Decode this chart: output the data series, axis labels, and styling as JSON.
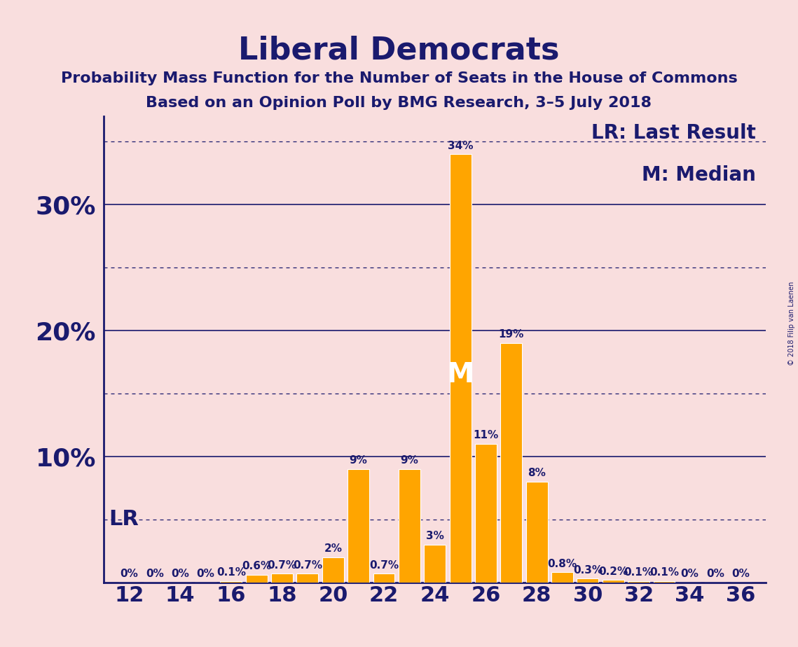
{
  "title": "Liberal Democrats",
  "subtitle1": "Probability Mass Function for the Number of Seats in the House of Commons",
  "subtitle2": "Based on an Opinion Poll by BMG Research, 3–5 July 2018",
  "copyright": "© 2018 Filip van Laenen",
  "seats": [
    12,
    13,
    14,
    15,
    16,
    17,
    18,
    19,
    20,
    21,
    22,
    23,
    24,
    25,
    26,
    27,
    28,
    29,
    30,
    31,
    32,
    33,
    34,
    35,
    36
  ],
  "probabilities": [
    0.0,
    0.0,
    0.0,
    0.0,
    0.1,
    0.6,
    0.7,
    0.7,
    2.0,
    9.0,
    0.7,
    9.0,
    3.0,
    34.0,
    11.0,
    19.0,
    8.0,
    0.8,
    0.3,
    0.2,
    0.1,
    0.1,
    0.0,
    0.0,
    0.0
  ],
  "labels": [
    "0%",
    "0%",
    "0%",
    "0%",
    "0.1%",
    "0.6%",
    "0.7%",
    "0.7%",
    "2%",
    "9%",
    "0.7%",
    "9%",
    "3%",
    "34%",
    "11%",
    "19%",
    "8%",
    "0.8%",
    "0.3%",
    "0.2%",
    "0.1%",
    "0.1%",
    "0%",
    "0%",
    "0%"
  ],
  "bar_color": "#FFA500",
  "bar_edge_color": "#FFFFFF",
  "background_color": "#F9DEDE",
  "title_color": "#1a1a6e",
  "axis_color": "#1a1a6e",
  "tick_color": "#1a1a6e",
  "label_color": "#1a1a6e",
  "grid_color_solid": "#1a1a6e",
  "grid_color_dotted": "#1a1a6e",
  "yticks_solid": [
    10,
    20,
    30
  ],
  "yticks_dotted": [
    5,
    15,
    25,
    35
  ],
  "ylim": [
    0,
    37
  ],
  "xlim": [
    11,
    37
  ],
  "xticks": [
    12,
    14,
    16,
    18,
    20,
    22,
    24,
    26,
    28,
    30,
    32,
    34,
    36
  ],
  "lr_seat": 12,
  "lr_label": "LR",
  "lr_y": 5.0,
  "median_seat": 25,
  "median_label": "M",
  "median_y": 16.5,
  "legend_lr": "LR: Last Result",
  "legend_m": "M: Median",
  "title_fontsize": 32,
  "subtitle_fontsize": 16,
  "ytick_fontsize": 26,
  "xtick_fontsize": 22,
  "bar_label_fontsize": 11,
  "legend_fontsize": 20,
  "lr_annotation_fontsize": 22,
  "median_annotation_fontsize": 28
}
